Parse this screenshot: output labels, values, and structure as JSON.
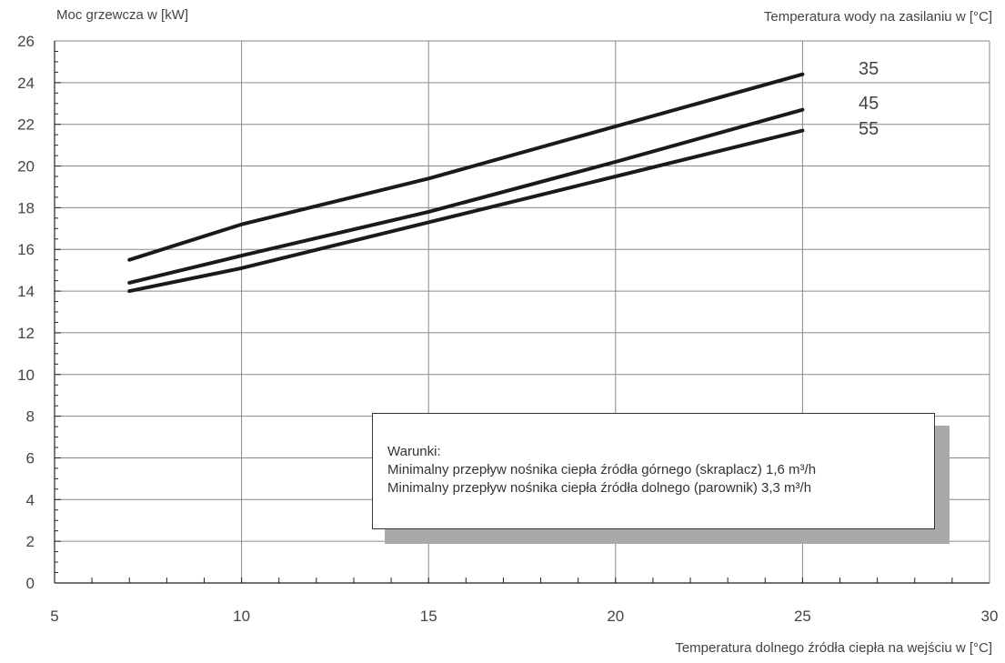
{
  "chart_data": {
    "type": "line",
    "ylabel": "Moc grzewcza w [kW]",
    "xlabel": "Temperatura dolnego źródła ciepła na wejściu w [°C]",
    "legend_title": "Temperatura wody na zasilaniu w [°C]",
    "xlim": [
      5,
      30
    ],
    "ylim": [
      0,
      26
    ],
    "x_ticks": [
      5,
      10,
      15,
      20,
      25,
      30
    ],
    "y_ticks": [
      0,
      2,
      4,
      6,
      8,
      10,
      12,
      14,
      16,
      18,
      20,
      22,
      24,
      26
    ],
    "grid": true,
    "legend_placement": "right",
    "series": [
      {
        "name": "35",
        "x": [
          7,
          10,
          15,
          20,
          25
        ],
        "values": [
          15.5,
          17.2,
          19.4,
          21.9,
          24.4
        ]
      },
      {
        "name": "45",
        "x": [
          7,
          10,
          15,
          20,
          25
        ],
        "values": [
          14.4,
          15.7,
          17.8,
          20.2,
          22.7
        ]
      },
      {
        "name": "55",
        "x": [
          7,
          10,
          15,
          20,
          25
        ],
        "values": [
          14.0,
          15.1,
          17.3,
          19.5,
          21.7
        ]
      }
    ],
    "note": {
      "title": "Warunki:",
      "lines": [
        "Minimalny przepływ nośnika ciepła źródła górnego (skraplacz) 1,6 m³/h",
        "Minimalny przepływ nośnika ciepła źródła dolnego (parownik) 3,3 m³/h"
      ]
    }
  }
}
